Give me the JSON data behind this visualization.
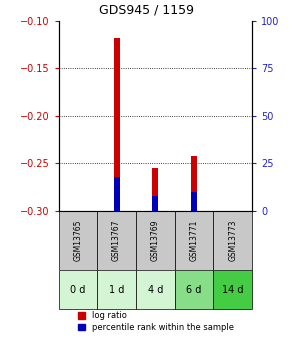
{
  "title": "GDS945 / 1159",
  "samples": [
    "GSM13765",
    "GSM13767",
    "GSM13769",
    "GSM13771",
    "GSM13773"
  ],
  "time_labels": [
    "0 d",
    "1 d",
    "4 d",
    "6 d",
    "14 d"
  ],
  "log_ratio": [
    null,
    -0.118,
    -0.255,
    -0.242,
    null
  ],
  "percentile_rank": [
    null,
    18,
    8,
    10,
    null
  ],
  "ylim_left": [
    -0.3,
    -0.1
  ],
  "ylim_right": [
    0,
    100
  ],
  "yticks_left": [
    -0.3,
    -0.25,
    -0.2,
    -0.15,
    -0.1
  ],
  "yticks_right": [
    0,
    25,
    50,
    75,
    100
  ],
  "bar_width": 0.15,
  "red_color": "#cc0000",
  "blue_color": "#0000bb",
  "left_tick_color": "#cc0000",
  "right_tick_color": "#2222cc",
  "sample_bg_color": "#c8c8c8",
  "time_bg_colors": [
    "#d4f5d4",
    "#d4f5d4",
    "#d4f5d4",
    "#88dd88",
    "#44cc44"
  ],
  "legend_labels": [
    "log ratio",
    "percentile rank within the sample"
  ],
  "figsize": [
    2.93,
    3.45
  ],
  "dpi": 100
}
